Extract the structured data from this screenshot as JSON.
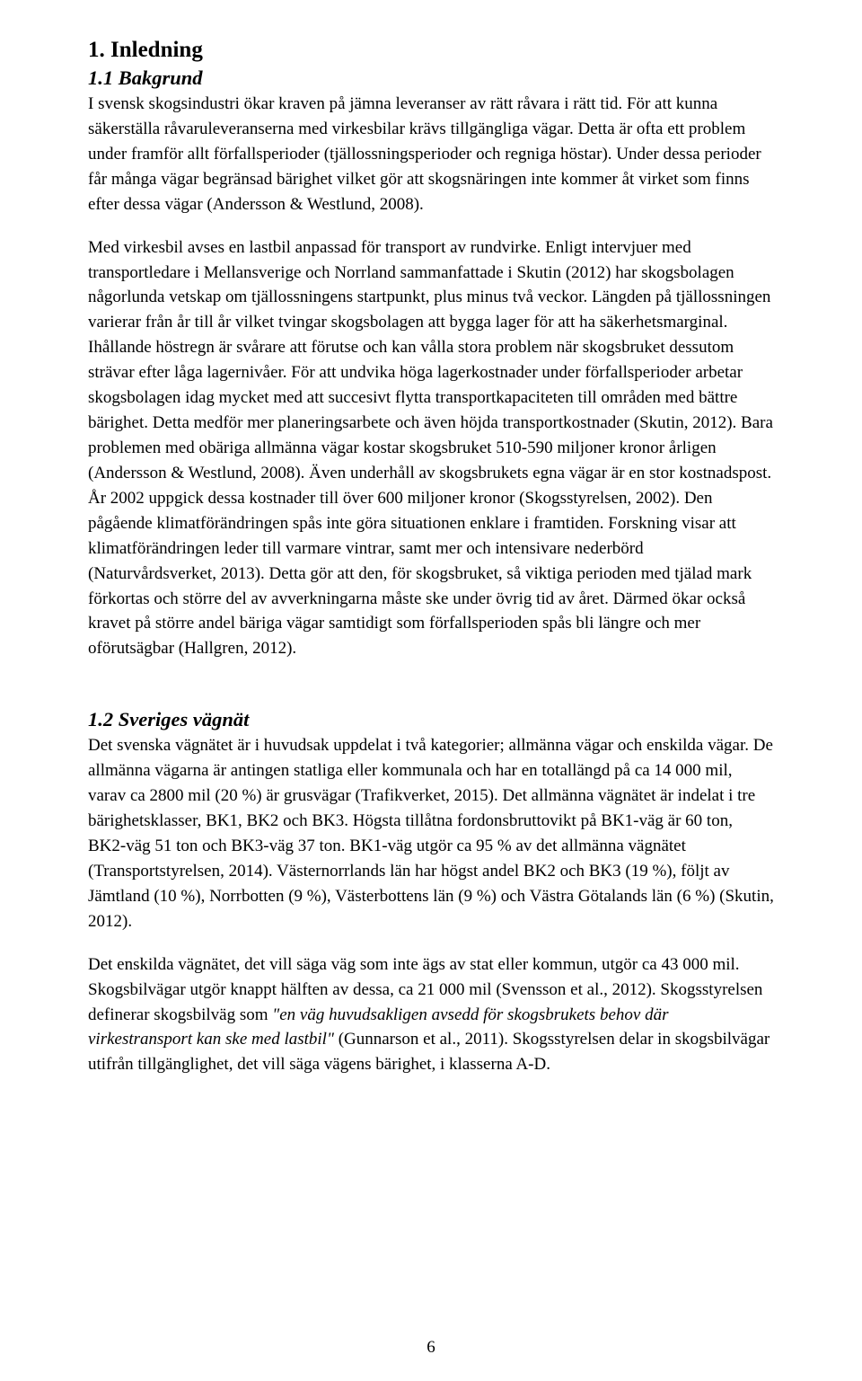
{
  "doc": {
    "text_color": "#000000",
    "bg_color": "#ffffff",
    "body_fontsize": 19,
    "h1_fontsize": 25,
    "h2_fontsize": 22.5,
    "font_family": "Times New Roman"
  },
  "page_number": "6",
  "sections": {
    "s1": {
      "heading": "1. Inledning",
      "sub1": {
        "heading": "1.1 Bakgrund",
        "p1": "I svensk skogsindustri ökar kraven på jämna leveranser av rätt råvara i rätt tid. För att kunna säkerställa råvaruleveranserna med virkesbilar krävs tillgängliga vägar. Detta är ofta ett problem under framför allt förfallsperioder (tjällossningsperioder och regniga höstar). Under dessa perioder får många vägar begränsad bärighet vilket gör att skogsnäringen inte kommer åt virket som finns efter dessa vägar (Andersson & Westlund, 2008).",
        "p2": "Med virkesbil avses en lastbil anpassad för transport av rundvirke. Enligt intervjuer med transportledare i Mellansverige och Norrland sammanfattade i Skutin (2012) har skogsbolagen någorlunda vetskap om tjällossningens startpunkt, plus minus två veckor. Längden på tjällossningen varierar från år till år vilket tvingar skogsbolagen att bygga lager för att ha säkerhetsmarginal. Ihållande höstregn är svårare att förutse och kan vålla stora problem när skogsbruket dessutom strävar efter låga lagernivåer. För att undvika höga lagerkostnader under förfallsperioder arbetar skogsbolagen idag mycket med att succesivt flytta transportkapaciteten till områden med bättre bärighet. Detta medför mer planeringsarbete och även höjda transportkostnader (Skutin, 2012). Bara problemen med obäriga allmänna vägar kostar skogsbruket 510-590 miljoner kronor årligen (Andersson & Westlund, 2008). Även underhåll av skogsbrukets egna vägar är en stor kostnadspost. År 2002 uppgick dessa kostnader till över 600 miljoner kronor (Skogsstyrelsen, 2002). Den pågående klimatförändringen spås inte göra situationen enklare i framtiden. Forskning visar att klimatförändringen leder till varmare vintrar, samt mer och intensivare nederbörd (Naturvårdsverket, 2013). Detta gör att den, för skogsbruket, så viktiga perioden med tjälad mark förkortas och större del av avverkningarna måste ske under övrig tid av året. Därmed ökar också kravet på större andel bäriga vägar samtidigt som förfallsperioden spås bli längre och mer oförutsägbar (Hallgren, 2012)."
      },
      "sub2": {
        "heading": "1.2 Sveriges vägnät",
        "p1": "Det svenska vägnätet är i huvudsak uppdelat i två kategorier; allmänna vägar och enskilda vägar. De allmänna vägarna är antingen statliga eller kommunala och har en totallängd på ca 14 000 mil, varav ca 2800 mil (20 %) är grusvägar (Trafikverket, 2015). Det allmänna vägnätet är indelat i tre bärighetsklasser, BK1, BK2 och BK3. Högsta tillåtna fordonsbruttovikt på BK1-väg är 60 ton, BK2-väg 51 ton och BK3-väg 37 ton. BK1-väg utgör ca 95 % av det allmänna vägnätet (Transportstyrelsen, 2014). Västernorrlands län har högst andel BK2 och BK3 (19 %), följt av Jämtland (10 %), Norrbotten (9 %), Västerbottens län (9 %) och Västra Götalands län (6 %) (Skutin, 2012).",
        "p2_pre": "Det enskilda vägnätet, det vill säga väg som inte ägs av stat eller kommun, utgör ca 43 000 mil. Skogsbilvägar utgör knappt hälften av dessa, ca 21 000 mil (Svensson et al., 2012). Skogsstyrelsen definerar skogsbilväg som ",
        "p2_italic": "\"en väg huvudsakligen avsedd för skogsbrukets behov där virkestransport kan ske med lastbil\"",
        "p2_post": " (Gunnarson et al., 2011).  Skogsstyrelsen delar in skogsbilvägar utifrån tillgänglighet, det vill säga vägens bärighet, i klasserna A-D."
      }
    }
  }
}
